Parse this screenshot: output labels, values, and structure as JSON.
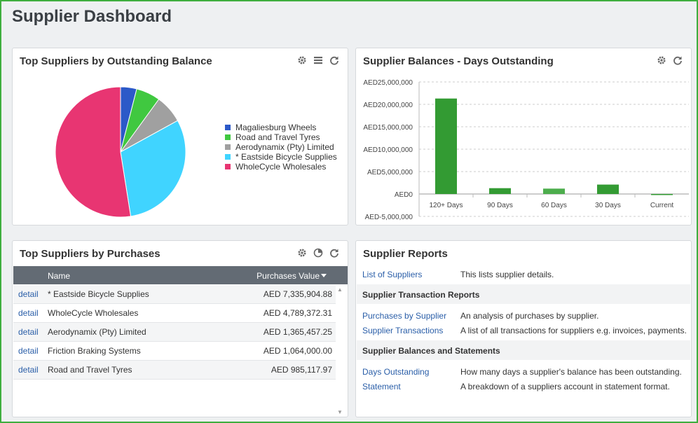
{
  "page": {
    "title": "Supplier Dashboard"
  },
  "colors": {
    "frame": "#3fae3f",
    "bar": "#339b33",
    "bar_light": "#4cad4c",
    "link": "#2a5ea8",
    "table_header": "#636b74"
  },
  "panels": {
    "outstanding": {
      "title": "Top Suppliers by Outstanding Balance",
      "tools": [
        "gear-icon",
        "list-icon",
        "refresh-icon"
      ]
    },
    "days": {
      "title": "Supplier Balances - Days Outstanding",
      "tools": [
        "gear-icon",
        "refresh-icon"
      ]
    },
    "purchases": {
      "title": "Top Suppliers by Purchases",
      "tools": [
        "gear-icon",
        "pie-icon",
        "refresh-icon"
      ],
      "columns": {
        "name": "Name",
        "value": "Purchases Value"
      },
      "rows": [
        {
          "link": "detail",
          "name": "* Eastside Bicycle Supplies",
          "value": "AED 7,335,904.88"
        },
        {
          "link": "detail",
          "name": "WholeCycle Wholesales",
          "value": "AED 4,789,372.31"
        },
        {
          "link": "detail",
          "name": "Aerodynamix (Pty) Limited",
          "value": "AED 1,365,457.25"
        },
        {
          "link": "detail",
          "name": "Friction Braking Systems",
          "value": "AED 1,064,000.00"
        },
        {
          "link": "detail",
          "name": "Road and Travel Tyres",
          "value": "AED 985,117.97"
        }
      ]
    },
    "reports": {
      "title": "Supplier Reports",
      "items": [
        {
          "link": "List of Suppliers",
          "desc": "This lists supplier details."
        }
      ],
      "sections": [
        {
          "heading": "Supplier Transaction Reports",
          "items": [
            {
              "link": "Purchases by Supplier",
              "desc": "An analysis of purchases by supplier."
            },
            {
              "link": "Supplier Transactions",
              "desc": "A list of all transactions for suppliers e.g. invoices, payments."
            }
          ]
        },
        {
          "heading": "Supplier Balances and Statements",
          "items": [
            {
              "link": "Days Outstanding",
              "desc": "How many days a supplier's balance has been outstanding."
            },
            {
              "link": "Statement",
              "desc": "A breakdown of a suppliers account in statement format."
            }
          ]
        }
      ]
    }
  },
  "chart_data": [
    {
      "type": "pie",
      "title": "Top Suppliers by Outstanding Balance",
      "categories": [
        "Magaliesburg Wheels",
        "Road and Travel Tyres",
        "Aerodynamix (Pty) Limited",
        "* Eastside Bicycle Supplies",
        "WholeCycle Wholesales"
      ],
      "values": [
        4.0,
        6.0,
        7.0,
        30.5,
        52.5
      ],
      "colors": [
        "#2c59c8",
        "#40c840",
        "#a0a0a0",
        "#40d4ff",
        "#e83572"
      ],
      "legend": "right"
    },
    {
      "type": "bar",
      "title": "Supplier Balances - Days Outstanding",
      "categories": [
        "120+ Days",
        "90 Days",
        "60 Days",
        "30 Days",
        "Current"
      ],
      "values": [
        21300000,
        1300000,
        1200000,
        2100000,
        -150000
      ],
      "yticks": [
        "AED25,000,000",
        "AED20,000,000",
        "AED15,000,000",
        "AED10,000,000",
        "AED5,000,000",
        "AED0",
        "AED-5,000,000"
      ],
      "ylim": [
        -5000000,
        25000000
      ],
      "grid": true
    }
  ]
}
